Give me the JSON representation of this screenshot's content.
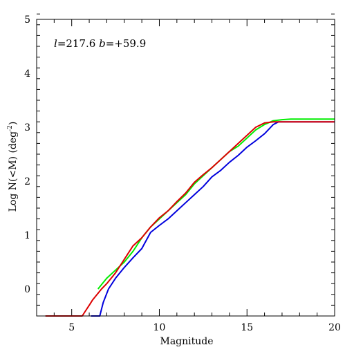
{
  "chart_data": {
    "type": "line",
    "title": "",
    "annotation": {
      "l_symbol": "l",
      "l_text": "=217.6 ",
      "b_symbol": "b",
      "b_text": "=+59.9"
    },
    "xlabel": "Magnitude",
    "ylabel": {
      "prefix": "Log N(<M) (deg",
      "superscript": "-2",
      "suffix": ")"
    },
    "xlim": [
      3,
      20
    ],
    "ylim": [
      -0.5,
      5
    ],
    "x_ticks": [
      5,
      10,
      15,
      20
    ],
    "x_tick_labels": [
      "5",
      "10",
      "15",
      "20"
    ],
    "y_ticks": [
      0,
      1,
      2,
      3,
      4,
      5
    ],
    "y_tick_labels": [
      "0",
      "1",
      "2",
      "3",
      "4",
      "5"
    ],
    "x_minor_step": 1,
    "y_minor_step": 0.2,
    "grid": false,
    "legend": "none",
    "series": [
      {
        "color": "#00ee00",
        "points": [
          [
            6.5,
            0.0
          ],
          [
            7.0,
            0.2
          ],
          [
            7.5,
            0.35
          ],
          [
            8.0,
            0.5
          ],
          [
            8.5,
            0.7
          ],
          [
            9.0,
            0.95
          ],
          [
            9.5,
            1.15
          ],
          [
            10.0,
            1.3
          ],
          [
            10.5,
            1.45
          ],
          [
            11.0,
            1.6
          ],
          [
            11.5,
            1.75
          ],
          [
            12.0,
            1.95
          ],
          [
            12.5,
            2.1
          ],
          [
            13.0,
            2.25
          ],
          [
            13.5,
            2.4
          ],
          [
            14.0,
            2.55
          ],
          [
            14.5,
            2.65
          ],
          [
            15.0,
            2.8
          ],
          [
            15.5,
            2.95
          ],
          [
            16.0,
            3.05
          ],
          [
            16.5,
            3.12
          ],
          [
            17.0,
            3.14
          ],
          [
            17.5,
            3.15
          ],
          [
            20.0,
            3.15
          ]
        ]
      },
      {
        "color": "#0000dd",
        "points": [
          [
            6.1,
            -0.5
          ],
          [
            6.6,
            -0.5
          ],
          [
            6.8,
            -0.25
          ],
          [
            7.1,
            0.0
          ],
          [
            7.5,
            0.2
          ],
          [
            8.0,
            0.4
          ],
          [
            8.5,
            0.58
          ],
          [
            9.0,
            0.75
          ],
          [
            9.5,
            1.05
          ],
          [
            10.0,
            1.18
          ],
          [
            10.5,
            1.3
          ],
          [
            11.0,
            1.45
          ],
          [
            11.5,
            1.6
          ],
          [
            12.0,
            1.75
          ],
          [
            12.5,
            1.9
          ],
          [
            13.0,
            2.08
          ],
          [
            13.5,
            2.2
          ],
          [
            14.0,
            2.35
          ],
          [
            14.5,
            2.48
          ],
          [
            15.0,
            2.63
          ],
          [
            15.5,
            2.75
          ],
          [
            16.0,
            2.88
          ],
          [
            16.5,
            3.05
          ],
          [
            16.8,
            3.1
          ],
          [
            20.0,
            3.1
          ]
        ]
      },
      {
        "color": "#dd0000",
        "points": [
          [
            3.5,
            -0.5
          ],
          [
            5.6,
            -0.5
          ],
          [
            6.0,
            -0.3
          ],
          [
            6.2,
            -0.2
          ],
          [
            6.7,
            0.0
          ],
          [
            7.0,
            0.1
          ],
          [
            7.5,
            0.3
          ],
          [
            8.0,
            0.55
          ],
          [
            8.5,
            0.8
          ],
          [
            9.0,
            0.95
          ],
          [
            9.5,
            1.15
          ],
          [
            10.0,
            1.32
          ],
          [
            10.5,
            1.45
          ],
          [
            11.0,
            1.62
          ],
          [
            11.5,
            1.78
          ],
          [
            12.0,
            1.98
          ],
          [
            12.5,
            2.12
          ],
          [
            13.0,
            2.25
          ],
          [
            13.5,
            2.4
          ],
          [
            14.0,
            2.55
          ],
          [
            14.5,
            2.7
          ],
          [
            15.0,
            2.85
          ],
          [
            15.5,
            3.0
          ],
          [
            16.0,
            3.08
          ],
          [
            16.5,
            3.1
          ],
          [
            20.0,
            3.1
          ]
        ]
      }
    ]
  }
}
